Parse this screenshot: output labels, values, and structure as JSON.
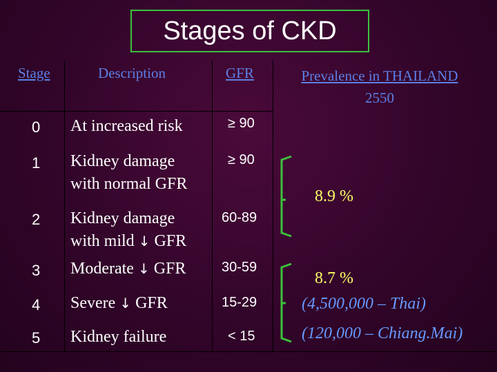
{
  "title": "Stages of CKD",
  "headers": {
    "stage": "Stage",
    "description": "Description",
    "gfr": "GFR",
    "prevalence_line1": "Prevalence in THAILAND",
    "prevalence_line2": "2550"
  },
  "rows": [
    {
      "stage": "0",
      "desc_line1": "At increased risk",
      "desc_line2": "",
      "gfr": "≥ 90"
    },
    {
      "stage": "1",
      "desc_line1": "Kidney damage",
      "desc_line2": "with normal GFR",
      "gfr": "≥ 90"
    },
    {
      "stage": "2",
      "desc_line1": "Kidney damage",
      "desc_line2_prefix": "with mild",
      "arrow": "↓",
      "desc_line2_suffix": "GFR",
      "gfr": "60-89"
    },
    {
      "stage": "3",
      "desc_prefix": "Moderate",
      "arrow": "↓",
      "desc_suffix": "GFR",
      "gfr": "30-59"
    },
    {
      "stage": "4",
      "desc_prefix": "Severe",
      "arrow": "↓",
      "desc_suffix": "GFR",
      "gfr": "15-29"
    },
    {
      "stage": "5",
      "desc_line1": "Kidney failure",
      "gfr": "< 15"
    }
  ],
  "prevalence": {
    "group1": "8.9 %",
    "group2": "8.7 %",
    "thai": "(4,500,000 – Thai)",
    "chiangmai": "(120,000 – Chiang.Mai)"
  },
  "colors": {
    "header": "#5c7fe6",
    "text": "#ffffff",
    "yellow": "#ffff66",
    "blue": "#6699ff",
    "bracket": "#3cc13c",
    "title_border": "#3cc13c"
  }
}
